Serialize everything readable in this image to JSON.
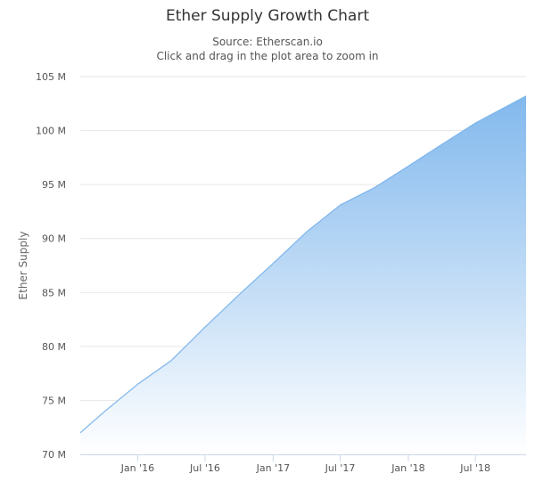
{
  "chart_data": {
    "type": "area",
    "title": "Ether Supply Growth Chart",
    "subtitle_lines": [
      "Source: Etherscan.io",
      "Click and drag in the plot area to zoom in"
    ],
    "ylabel": "Ether Supply",
    "xlabel": "",
    "xlim": [
      "2015-07-30",
      "2018-11-15"
    ],
    "ylim": [
      70000000,
      105000000
    ],
    "y_ticks": [
      70000000,
      75000000,
      80000000,
      85000000,
      90000000,
      95000000,
      100000000,
      105000000
    ],
    "y_tick_labels": [
      "70 M",
      "75 M",
      "80 M",
      "85 M",
      "90 M",
      "95 M",
      "100 M",
      "105 M"
    ],
    "x_ticks": [
      "2016-01-01",
      "2016-07-01",
      "2017-01-01",
      "2017-07-01",
      "2018-01-01",
      "2018-07-01"
    ],
    "x_tick_labels": [
      "Jan '16",
      "Jul '16",
      "Jan '17",
      "Jul '17",
      "Jan '18",
      "Jul '18"
    ],
    "grid": true,
    "legend": false,
    "series": [
      {
        "x": [
          "2015-07-30",
          "2015-10-01",
          "2016-01-01",
          "2016-04-01",
          "2016-07-01",
          "2016-10-01",
          "2017-01-01",
          "2017-04-01",
          "2017-07-01",
          "2017-10-01",
          "2018-01-01",
          "2018-04-01",
          "2018-07-01",
          "2018-11-15"
        ],
        "values": [
          72000000,
          73900000,
          76500000,
          78700000,
          81800000,
          84800000,
          87700000,
          90600000,
          93100000,
          94700000,
          96700000,
          98700000,
          100700000,
          103200000
        ]
      }
    ],
    "colors": {
      "line": "#7cb5ec",
      "fill_top": "#7cb5ec",
      "fill_bottom": "#ffffff",
      "grid": "#e6e6e6",
      "axis": "#ccd6eb"
    }
  }
}
